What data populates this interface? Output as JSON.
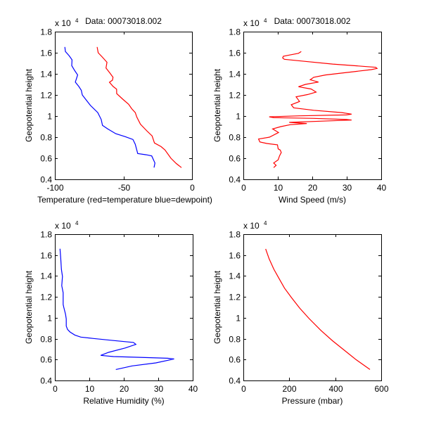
{
  "chart_data": [
    {
      "type": "line",
      "title": "Data: 00073018.002",
      "xlabel": "Temperature (red=temperature blue=dewpoint)",
      "ylabel": "Geopotential height",
      "y_multiplier": "x 10",
      "y_multiplier_exp": "4",
      "xlim": [
        -100,
        0
      ],
      "ylim": [
        0.4,
        1.8
      ],
      "xticks": [
        -100,
        -50,
        0
      ],
      "xtick_labels": [
        "-100",
        "-50",
        "0"
      ],
      "yticks": [
        0.4,
        0.6,
        0.8,
        1.0,
        1.2,
        1.4,
        1.6,
        1.8
      ],
      "ytick_labels": [
        "0.4",
        "0.6",
        "0.8",
        "1",
        "1.2",
        "1.4",
        "1.6",
        "1.8"
      ],
      "grid": false,
      "series": [
        {
          "name": "temperature",
          "color": "#ff0000",
          "x": [
            -69.2,
            -68.4,
            -65.5,
            -62,
            -62.7,
            -60,
            -57.6,
            -58,
            -60.2,
            -57.5,
            -55,
            -54.9,
            -50.5,
            -46.2,
            -44,
            -41.4,
            -40.2,
            -37.6,
            -33,
            -29.1,
            -27.4,
            -22.5,
            -19.7,
            -15.4,
            -11.5,
            -7.7
          ],
          "y": [
            1.655,
            1.6,
            1.56,
            1.51,
            1.455,
            1.41,
            1.367,
            1.34,
            1.32,
            1.28,
            1.255,
            1.213,
            1.16,
            1.111,
            1.07,
            1.033,
            0.989,
            0.922,
            0.86,
            0.811,
            0.745,
            0.71,
            0.678,
            0.6,
            0.55,
            0.511
          ]
        },
        {
          "name": "dewpoint",
          "color": "#0000ff",
          "x": [
            -92.7,
            -92.3,
            -89.5,
            -87.5,
            -87.7,
            -85.5,
            -83.4,
            -85.1,
            -82.5,
            -80.7,
            -80,
            -77,
            -74.7,
            -74,
            -68.7,
            -66.2,
            -65.3,
            -61.5,
            -55.6,
            -48.7,
            -43.1,
            -41.4,
            -39.6,
            -33.3,
            -29.4,
            -27,
            -27.7
          ],
          "y": [
            1.655,
            1.611,
            1.57,
            1.533,
            1.478,
            1.43,
            1.389,
            1.322,
            1.28,
            1.244,
            1.2,
            1.15,
            1.111,
            1.1,
            1.033,
            0.967,
            0.911,
            0.878,
            0.833,
            0.805,
            0.778,
            0.733,
            0.645,
            0.633,
            0.622,
            0.555,
            0.511
          ]
        }
      ]
    },
    {
      "type": "line",
      "title": "Data: 00073018.002",
      "xlabel": "Wind Speed (m/s)",
      "ylabel": "Geopotential height",
      "y_multiplier": "x 10",
      "y_multiplier_exp": "4",
      "xlim": [
        0,
        40
      ],
      "ylim": [
        0.4,
        1.8
      ],
      "xticks": [
        0,
        10,
        20,
        30,
        40
      ],
      "xtick_labels": [
        "0",
        "10",
        "20",
        "30",
        "40"
      ],
      "yticks": [
        0.4,
        0.6,
        0.8,
        1.0,
        1.2,
        1.4,
        1.6,
        1.8
      ],
      "ytick_labels": [
        "0.4",
        "0.6",
        "0.8",
        "1",
        "1.2",
        "1.4",
        "1.6",
        "1.8"
      ],
      "grid": false,
      "series": [
        {
          "name": "wind speed",
          "color": "#ff0000",
          "x": [
            16.8,
            16.0,
            13.3,
            11.6,
            11.4,
            11.9,
            18.0,
            25.9,
            34.7,
            38.4,
            38.8,
            37.1,
            28.6,
            23.8,
            20.4,
            19.4,
            21.8,
            18.0,
            16.0,
            19.7,
            21.1,
            18.7,
            15.3,
            16.3,
            13.9,
            14.6,
            20.4,
            28.6,
            31.4,
            29.9,
            16.3,
            7.5,
            8.8,
            20.4,
            29.9,
            31.4,
            22.4,
            13.3,
            18.4,
            13.6,
            10.9,
            8.5,
            10.2,
            7.6,
            4.4,
            4.8,
            6.8,
            9.9,
            10.1,
            10.7,
            11.0,
            10.5,
            10.1,
            8.8,
            9.5,
            8.8
          ],
          "y": [
            1.611,
            1.595,
            1.578,
            1.567,
            1.551,
            1.538,
            1.518,
            1.493,
            1.471,
            1.462,
            1.451,
            1.44,
            1.407,
            1.389,
            1.367,
            1.344,
            1.322,
            1.3,
            1.278,
            1.256,
            1.227,
            1.204,
            1.182,
            1.138,
            1.107,
            1.078,
            1.055,
            1.033,
            1.018,
            1.011,
            1.002,
            0.993,
            0.985,
            0.978,
            0.967,
            0.962,
            0.951,
            0.94,
            0.929,
            0.918,
            0.9,
            0.878,
            0.844,
            0.8,
            0.782,
            0.755,
            0.74,
            0.727,
            0.689,
            0.678,
            0.655,
            0.622,
            0.585,
            0.555,
            0.533,
            0.511
          ]
        }
      ]
    },
    {
      "type": "line",
      "title": "",
      "xlabel": "Relative Humidity (%)",
      "ylabel": "Geopotential height",
      "y_multiplier": "x 10",
      "y_multiplier_exp": "4",
      "xlim": [
        0,
        40
      ],
      "ylim": [
        0.4,
        1.8
      ],
      "xticks": [
        0,
        10,
        20,
        30,
        40
      ],
      "xtick_labels": [
        "0",
        "10",
        "20",
        "30",
        "40"
      ],
      "yticks": [
        0.4,
        0.6,
        0.8,
        1.0,
        1.2,
        1.4,
        1.6,
        1.8
      ],
      "ytick_labels": [
        "0.4",
        "0.6",
        "0.8",
        "1",
        "1.2",
        "1.4",
        "1.6",
        "1.8"
      ],
      "grid": false,
      "series": [
        {
          "name": "relative humidity",
          "color": "#0000ff",
          "x": [
            1.5,
            1.7,
            1.9,
            2.2,
            2.0,
            2.4,
            2.4,
            2.6,
            3.1,
            3.3,
            3.3,
            3.7,
            4.4,
            5.8,
            7.5,
            11.2,
            17.0,
            22.8,
            23.5,
            20.4,
            15.6,
            13.3,
            17.0,
            23.8,
            32.7,
            34.6,
            29.3,
            22.4,
            17.7
          ],
          "y": [
            1.661,
            1.576,
            1.464,
            1.396,
            1.307,
            1.24,
            1.127,
            1.1,
            1.033,
            0.988,
            0.92,
            0.887,
            0.864,
            0.835,
            0.815,
            0.802,
            0.782,
            0.764,
            0.745,
            0.711,
            0.669,
            0.64,
            0.629,
            0.622,
            0.613,
            0.606,
            0.568,
            0.539,
            0.505
          ]
        }
      ]
    },
    {
      "type": "line",
      "title": "",
      "xlabel": "Pressure (mbar)",
      "ylabel": "Geopotential height",
      "y_multiplier": "x 10",
      "y_multiplier_exp": "4",
      "xlim": [
        0,
        600
      ],
      "ylim": [
        0.4,
        1.8
      ],
      "xticks": [
        0,
        200,
        400,
        600
      ],
      "xtick_labels": [
        "0",
        "200",
        "400",
        "600"
      ],
      "yticks": [
        0.4,
        0.6,
        0.8,
        1.0,
        1.2,
        1.4,
        1.6,
        1.8
      ],
      "ytick_labels": [
        "0.4",
        "0.6",
        "0.8",
        "1",
        "1.2",
        "1.4",
        "1.6",
        "1.8"
      ],
      "grid": false,
      "series": [
        {
          "name": "pressure",
          "color": "#ff0000",
          "x": [
            97,
            112,
            133,
            153,
            179,
            209,
            245,
            286,
            337,
            388,
            439,
            490,
            551
          ],
          "y": [
            1.659,
            1.565,
            1.464,
            1.385,
            1.284,
            1.194,
            1.093,
            0.993,
            0.88,
            0.78,
            0.69,
            0.6,
            0.505
          ]
        }
      ]
    }
  ]
}
